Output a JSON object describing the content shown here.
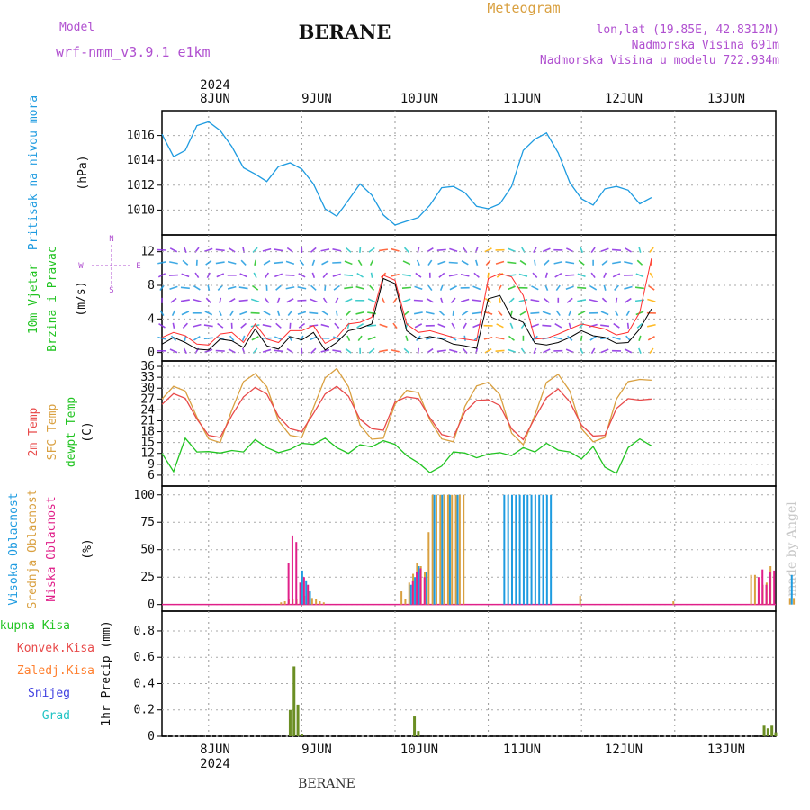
{
  "header": {
    "model_label": "Model",
    "model_name": "wrf-nmm_v3.9.1 e1km",
    "station": "BERANE",
    "product": "Meteogram",
    "lonlat": "lon,lat (19.85E, 42.8312N)",
    "elevation": "Nadmorska Visina 691m",
    "model_elevation": "Nadmorska Visina u modelu 722.934m",
    "footer_station": "BERANE",
    "watermark": "made by Angel"
  },
  "colors": {
    "pressure": "#1e9be0",
    "temp2m": "#e84a4a",
    "sfctemp": "#d9a040",
    "dewpt": "#22c422",
    "high_cloud": "#1e9be0",
    "mid_cloud": "#d9a040",
    "low_cloud": "#e0208a",
    "total_precip": "#6b8e23",
    "wind_speed": "#000000",
    "gust": "#ff3030"
  },
  "chart_data": [
    {
      "type": "line",
      "ylabel": [
        "Pritisak na nivou mora",
        "(hPa)"
      ],
      "yticks": [
        1010,
        1012,
        1014,
        1016
      ],
      "ylim": [
        1008,
        1018
      ],
      "x_top_labels": [
        "2024",
        "8JUN",
        "9JUN",
        "10JUN",
        "11JUN",
        "12JUN",
        "13JUN"
      ],
      "hours_start": -12,
      "hours_step": 3,
      "series": [
        {
          "values": [
            1016.1,
            1014.3,
            1014.8,
            1016.8,
            1017.1,
            1016.4,
            1015.1,
            1013.4,
            1012.9,
            1012.3,
            1013.5,
            1013.8,
            1013.3,
            1012.1,
            1010.1,
            1009.5,
            1010.8,
            1012.1,
            1011.2,
            1009.6,
            1008.8,
            1009.1,
            1009.4,
            1010.4,
            1011.8,
            1011.9,
            1011.4,
            1010.3,
            1010.1,
            1010.5,
            1011.9,
            1014.8,
            1015.7,
            1016.2,
            1014.6,
            1012.2,
            1010.9,
            1010.4,
            1011.7,
            1011.9,
            1011.6,
            1010.5,
            1011.0
          ]
        }
      ]
    },
    {
      "type": "line",
      "ylabel": [
        "10m Vjetar",
        "Brzina i Pravac",
        "(m/s)"
      ],
      "compass": [
        "N",
        "W",
        "E",
        "S"
      ],
      "yticks": [
        0,
        4,
        8,
        12
      ],
      "ylim": [
        -1,
        14
      ],
      "series": [
        {
          "name_color": "wind_speed",
          "values": [
            1.0,
            1.8,
            1.2,
            0.4,
            0.3,
            1.6,
            1.4,
            0.6,
            2.8,
            0.8,
            0.4,
            1.9,
            1.5,
            2.4,
            0.3,
            1.2,
            2.6,
            2.9,
            3.4,
            8.8,
            8.2,
            2.6,
            1.6,
            1.9,
            1.6,
            1.0,
            0.8,
            0.5,
            6.4,
            6.8,
            4.2,
            3.6,
            1.1,
            0.9,
            1.2,
            1.8,
            2.6,
            2.0,
            1.8,
            1.1,
            1.2,
            2.8,
            5.2
          ]
        },
        {
          "name_color": "gust",
          "values": [
            1.8,
            2.4,
            2.0,
            1.0,
            0.9,
            2.2,
            2.4,
            1.2,
            3.4,
            1.6,
            1.2,
            2.6,
            2.6,
            3.2,
            1.1,
            1.8,
            3.4,
            3.6,
            4.2,
            9.2,
            8.6,
            3.4,
            2.4,
            2.6,
            2.2,
            1.8,
            1.6,
            1.4,
            8.8,
            9.4,
            9.0,
            6.8,
            1.6,
            1.7,
            2.2,
            2.8,
            3.4,
            3.1,
            2.8,
            2.1,
            2.4,
            4.8,
            11.2
          ]
        }
      ]
    },
    {
      "type": "line",
      "ylabel": [
        "2m Temp",
        "SFC Temp",
        "dewpt Temp",
        "(C)"
      ],
      "yticks": [
        6,
        9,
        12,
        15,
        18,
        21,
        24,
        27,
        30,
        33,
        36
      ],
      "ylim": [
        3,
        37.5
      ],
      "series": [
        {
          "name_color": "temp2m",
          "values": [
            25.5,
            28.5,
            27.2,
            21.5,
            17.0,
            16.4,
            22.5,
            27.6,
            30.2,
            28.4,
            22.2,
            18.8,
            18.0,
            23.0,
            28.4,
            30.5,
            27.8,
            21.4,
            18.8,
            18.4,
            26.2,
            27.6,
            27.1,
            21.8,
            17.2,
            16.4,
            23.5,
            26.6,
            26.8,
            25.2,
            18.8,
            15.8,
            21.8,
            27.4,
            29.8,
            26.2,
            19.8,
            16.8,
            17.0,
            24.4,
            27.1,
            26.7,
            27.0
          ]
        },
        {
          "name_color": "sfctemp",
          "values": [
            27.0,
            30.5,
            29.2,
            22.0,
            16.0,
            15.0,
            24.0,
            31.8,
            34.0,
            30.4,
            21.0,
            17.0,
            16.4,
            24.6,
            32.8,
            35.4,
            30.4,
            19.8,
            15.9,
            16.2,
            25.6,
            29.4,
            28.8,
            21.2,
            16.0,
            15.2,
            25.0,
            30.6,
            31.6,
            28.2,
            17.6,
            14.4,
            22.6,
            31.6,
            33.8,
            29.2,
            18.8,
            15.2,
            16.4,
            27.0,
            31.8,
            32.4,
            32.2
          ]
        },
        {
          "name_color": "dewpt",
          "values": [
            12.0,
            7.0,
            16.2,
            12.4,
            12.5,
            12.1,
            12.8,
            12.4,
            15.8,
            13.6,
            12.2,
            13.1,
            14.8,
            14.5,
            16.2,
            13.6,
            12.0,
            14.4,
            13.8,
            15.5,
            14.5,
            11.4,
            9.4,
            6.7,
            8.5,
            12.4,
            12.1,
            10.8,
            11.8,
            12.2,
            11.4,
            13.6,
            12.4,
            14.8,
            12.9,
            12.4,
            10.5,
            13.9,
            8.2,
            6.5,
            13.6,
            16.0,
            14.1
          ]
        }
      ]
    },
    {
      "type": "bar",
      "ylabel": [
        "Visoka Oblacnost",
        "Srednja Oblacnost",
        "Niska Oblacnost",
        "(%)"
      ],
      "yticks": [
        0,
        25,
        50,
        75,
        100
      ],
      "ylim": [
        -6,
        108
      ],
      "series": [
        {
          "name_color": "high_cloud",
          "hours": [
            24,
            25,
            26,
            52,
            53,
            54,
            56,
            58,
            60,
            62,
            64,
            76,
            77,
            78,
            79,
            80,
            81,
            82,
            83,
            84,
            85,
            86,
            87,
            88,
            150,
            156
          ],
          "values": [
            31,
            22,
            12,
            18,
            25,
            35,
            30,
            100,
            100,
            100,
            100,
            100,
            100,
            100,
            100,
            100,
            100,
            100,
            100,
            100,
            100,
            100,
            100,
            100,
            27,
            17
          ]
        },
        {
          "name_color": "mid_cloud",
          "hours": [
            19,
            20,
            21,
            22,
            23,
            24,
            25,
            26,
            27,
            28,
            29,
            30,
            50,
            51,
            52,
            53,
            54,
            55,
            56,
            57,
            58,
            59,
            60,
            61,
            62,
            63,
            64,
            65,
            66,
            96,
            120,
            140,
            141,
            142,
            143,
            144,
            145,
            150,
            151,
            156,
            158
          ],
          "values": [
            2,
            3,
            5,
            5,
            5,
            10,
            8,
            12,
            6,
            5,
            3,
            2,
            12,
            5,
            20,
            28,
            38,
            35,
            30,
            66,
            100,
            100,
            100,
            100,
            100,
            100,
            100,
            100,
            100,
            8,
            3,
            27,
            27,
            20,
            18,
            20,
            35,
            6,
            6,
            6,
            8
          ]
        },
        {
          "name_color": "low_cloud",
          "hours": [
            20,
            21,
            22,
            23,
            24,
            25,
            52,
            53,
            54,
            55,
            141,
            142,
            143,
            144,
            145
          ],
          "values": [
            38,
            63,
            57,
            20,
            25,
            18,
            22,
            30,
            33,
            25,
            25,
            32,
            18,
            30,
            31
          ]
        }
      ]
    },
    {
      "type": "bar",
      "ylabel": [
        "1hr Precip (mm)"
      ],
      "legend": [
        "Ukupna Kisa",
        "Konvek.Kisa",
        "Zaledj.Kisa",
        "Snijeg",
        "Grad"
      ],
      "legend_colors": [
        "#22c422",
        "#e84a4a",
        "#ff8030",
        "#4040e0",
        "#22c4c4"
      ],
      "yticks": [
        0,
        0.2,
        0.4,
        0.6,
        0.8
      ],
      "ylim": [
        0,
        0.95
      ],
      "x_bottom_labels": [
        "8JUN",
        "2024",
        "9JUN",
        "10JUN",
        "11JUN",
        "12JUN",
        "13JUN"
      ],
      "series": [
        {
          "name_color": "total_precip",
          "hours": [
            21,
            22,
            23,
            24,
            53,
            54,
            143,
            144,
            145,
            146
          ],
          "values": [
            0.2,
            0.53,
            0.24,
            0.02,
            0.15,
            0.04,
            0.08,
            0.06,
            0.08,
            0.03
          ]
        }
      ]
    }
  ]
}
